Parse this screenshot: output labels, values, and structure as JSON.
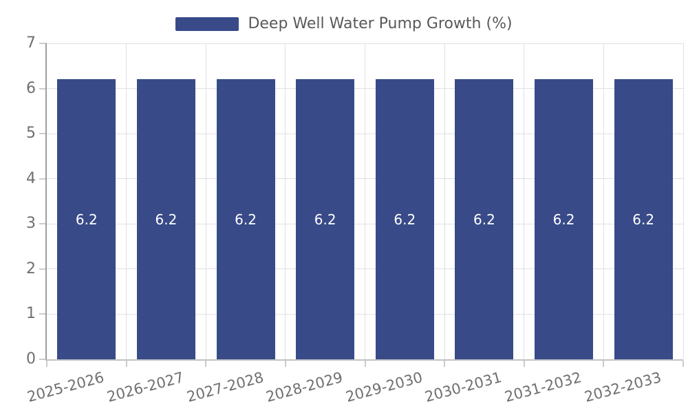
{
  "legend": {
    "label": "Deep Well Water Pump Growth (%)"
  },
  "colors": {
    "bar": "#384a88",
    "grid": "#e0e0e0",
    "axis_y": "#9e9e9e",
    "axis_x": "#c2c2c2",
    "tick_mark": "#cccccc",
    "tick_text": "#6f6f6f",
    "legend_text": "#595959",
    "bar_label": "#ffffff",
    "background": "#ffffff"
  },
  "chart_data": {
    "type": "bar",
    "title": "",
    "xlabel": "",
    "ylabel": "",
    "categories": [
      "2025-2026",
      "2026-2027",
      "2027-2028",
      "2028-2029",
      "2029-2030",
      "2030-2031",
      "2031-2032",
      "2032-2033"
    ],
    "series": [
      {
        "name": "Deep Well Water Pump Growth (%)",
        "values": [
          6.2,
          6.2,
          6.2,
          6.2,
          6.2,
          6.2,
          6.2,
          6.2
        ],
        "data_labels": [
          "6.2",
          "6.2",
          "6.2",
          "6.2",
          "6.2",
          "6.2",
          "6.2",
          "6.2"
        ]
      }
    ],
    "ylim": [
      0,
      7
    ],
    "yticks": [
      0,
      1,
      2,
      3,
      4,
      5,
      6,
      7
    ],
    "grid": true,
    "legend_position": "top",
    "x_label_rotation_deg": -15
  }
}
